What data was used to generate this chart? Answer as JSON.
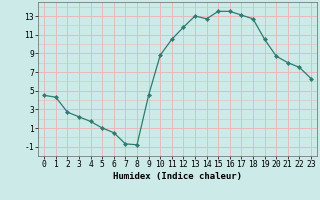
{
  "x": [
    0,
    1,
    2,
    3,
    4,
    5,
    6,
    7,
    8,
    9,
    10,
    11,
    12,
    13,
    14,
    15,
    16,
    17,
    18,
    19,
    20,
    21,
    22,
    23
  ],
  "y": [
    4.5,
    4.3,
    2.7,
    2.2,
    1.7,
    1.0,
    0.5,
    -0.7,
    -0.8,
    4.5,
    8.8,
    10.5,
    11.8,
    13.0,
    12.7,
    13.5,
    13.5,
    13.1,
    12.7,
    10.5,
    8.7,
    8.0,
    7.5,
    6.3
  ],
  "line_color": "#2e7b72",
  "marker": "D",
  "marker_size": 2.2,
  "bg_color": "#cceae8",
  "grid_major_color": "#e8b8b8",
  "grid_minor_color": "#e8b8b8",
  "xlabel": "Humidex (Indice chaleur)",
  "xlim": [
    -0.5,
    23.5
  ],
  "ylim": [
    -2.0,
    14.5
  ],
  "yticks": [
    -1,
    1,
    3,
    5,
    7,
    9,
    11,
    13
  ],
  "xticks": [
    0,
    1,
    2,
    3,
    4,
    5,
    6,
    7,
    8,
    9,
    10,
    11,
    12,
    13,
    14,
    15,
    16,
    17,
    18,
    19,
    20,
    21,
    22,
    23
  ],
  "xlabel_fontsize": 6.5,
  "tick_fontsize": 5.8,
  "linewidth": 0.9
}
